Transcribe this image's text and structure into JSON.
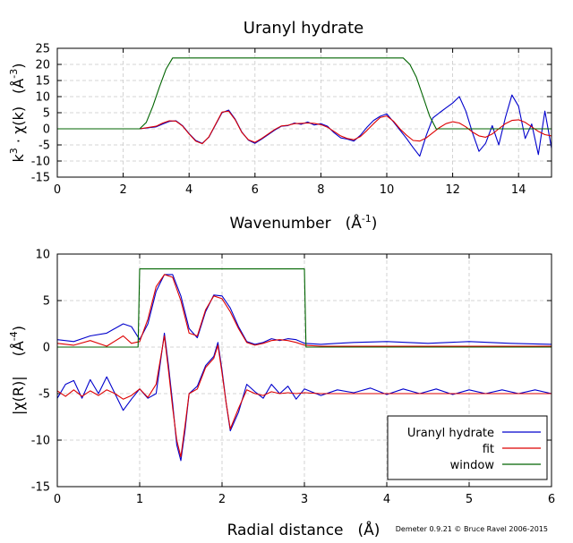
{
  "credit": "Demeter 0.9.21 © Bruce Ravel 2006-2015",
  "colors": {
    "data": "#0000cc",
    "fit": "#dd0000",
    "window": "#006400"
  },
  "chart_data": [
    {
      "type": "line",
      "title": "Uranyl hydrate",
      "xlabel": "Wavenumber",
      "xlabel_unit": "(Å",
      "xlabel_unit_exp": "-1",
      "xlabel_unit_close": ")",
      "ylabel": "k",
      "ylabel_exp": "3",
      "ylabel_rest": " · χ(k)",
      "ylabel_unit": "(Å",
      "ylabel_unit_exp": "-3",
      "ylabel_unit_close": ")",
      "xlim": [
        0,
        15
      ],
      "ylim": [
        -15,
        25
      ],
      "xticks": [
        "0",
        "2",
        "4",
        "6",
        "8",
        "10",
        "12",
        "14"
      ],
      "yticks": [
        "-15",
        "-10",
        "-5",
        "0",
        "5",
        "10",
        "15",
        "20",
        "25"
      ],
      "grid": true,
      "series": [
        {
          "key": "data",
          "x": [
            0,
            0.5,
            1,
            1.5,
            2,
            2.5,
            3,
            3.2,
            3.4,
            3.6,
            3.8,
            4,
            4.2,
            4.4,
            4.6,
            4.8,
            5,
            5.2,
            5.4,
            5.6,
            5.8,
            6,
            6.2,
            6.4,
            6.6,
            6.8,
            7,
            7.2,
            7.4,
            7.6,
            7.8,
            8,
            8.2,
            8.4,
            8.6,
            8.8,
            9,
            9.2,
            9.4,
            9.6,
            9.8,
            10,
            10.2,
            10.4,
            10.6,
            10.8,
            11,
            11.2,
            11.4,
            11.6,
            11.8,
            12,
            12.2,
            12.4,
            12.6,
            12.8,
            13,
            13.2,
            13.4,
            13.6,
            13.8,
            14,
            14.2,
            14.4,
            14.6,
            14.8,
            15
          ],
          "y": [
            0,
            0,
            0,
            0,
            0,
            0,
            0.6,
            1.5,
            2.3,
            2.5,
            1.0,
            -1.5,
            -3.6,
            -4.5,
            -2.6,
            1.2,
            5.0,
            5.8,
            3.0,
            -1.0,
            -3.5,
            -4.5,
            -3.2,
            -1.8,
            -0.4,
            0.8,
            1.0,
            1.8,
            1.4,
            2.1,
            1.2,
            1.6,
            0.8,
            -1.2,
            -2.8,
            -3.2,
            -3.8,
            -2.0,
            0.5,
            2.6,
            3.9,
            4.6,
            2.2,
            -0.4,
            -3.0,
            -5.8,
            -8.5,
            -2.0,
            3.4,
            5.0,
            6.5,
            8.0,
            10.0,
            5.5,
            -1.2,
            -7.0,
            -4.5,
            1.0,
            -5.0,
            3.5,
            10.5,
            7.0,
            -3.0,
            1.5,
            -8.0,
            5.5,
            -6.0
          ]
        },
        {
          "key": "fit",
          "x": [
            0,
            0.5,
            1,
            1.5,
            2,
            2.5,
            3,
            3.2,
            3.4,
            3.6,
            3.8,
            4,
            4.2,
            4.4,
            4.6,
            4.8,
            5,
            5.2,
            5.4,
            5.6,
            5.8,
            6,
            6.2,
            6.4,
            6.6,
            6.8,
            7,
            7.2,
            7.4,
            7.6,
            7.8,
            8,
            8.2,
            8.4,
            8.6,
            8.8,
            9,
            9.2,
            9.4,
            9.6,
            9.8,
            10,
            10.2,
            10.4,
            10.6,
            10.8,
            11,
            11.2,
            11.4,
            11.6,
            11.8,
            12,
            12.2,
            12.4,
            12.6,
            12.8,
            13,
            13.2,
            13.4,
            13.6,
            13.8,
            14,
            14.2,
            14.4,
            14.6,
            14.8,
            15
          ],
          "y": [
            0,
            0,
            0,
            0,
            0,
            0,
            0.8,
            1.8,
            2.5,
            2.4,
            0.9,
            -1.6,
            -3.8,
            -4.6,
            -2.5,
            1.3,
            5.2,
            5.5,
            2.8,
            -1.1,
            -3.4,
            -4.2,
            -3.0,
            -1.6,
            -0.2,
            0.9,
            1.1,
            1.6,
            1.7,
            1.8,
            1.7,
            1.3,
            0.5,
            -0.8,
            -2.2,
            -3.0,
            -3.4,
            -2.4,
            -0.5,
            1.6,
            3.5,
            4.0,
            2.4,
            0.0,
            -2.0,
            -3.6,
            -3.8,
            -2.8,
            -1.2,
            0.4,
            1.6,
            2.2,
            1.8,
            0.6,
            -1.0,
            -2.2,
            -2.6,
            -1.6,
            0.0,
            1.6,
            2.6,
            2.8,
            2.0,
            0.6,
            -0.8,
            -1.8,
            -2.2
          ]
        },
        {
          "key": "window",
          "x": [
            0,
            2.5,
            2.7,
            2.9,
            3.1,
            3.3,
            3.5,
            10.5,
            10.7,
            10.9,
            11.1,
            11.3,
            11.5,
            15
          ],
          "y": [
            0,
            0,
            2,
            7,
            13,
            18.5,
            22,
            22,
            20,
            16,
            10,
            4,
            0,
            0
          ]
        }
      ]
    },
    {
      "type": "line",
      "xlabel": "Radial distance",
      "xlabel_unit": "(Å)",
      "ylabel": "|χ(R)|",
      "ylabel_unit": "(Å",
      "ylabel_unit_exp": "-4",
      "ylabel_unit_close": ")",
      "xlim": [
        0,
        6
      ],
      "ylim": [
        -15,
        10
      ],
      "xticks": [
        "0",
        "1",
        "2",
        "3",
        "4",
        "5",
        "6"
      ],
      "yticks": [
        "-15",
        "-10",
        "-5",
        "0",
        "5",
        "10"
      ],
      "grid": true,
      "legend_placement": "bottom-right",
      "series": [
        {
          "key": "data",
          "name": "Uranyl hydrate",
          "x": [
            0,
            0.2,
            0.4,
            0.6,
            0.8,
            0.9,
            1.0,
            1.1,
            1.2,
            1.3,
            1.4,
            1.5,
            1.6,
            1.7,
            1.8,
            1.9,
            2.0,
            2.1,
            2.2,
            2.3,
            2.4,
            2.5,
            2.6,
            2.7,
            2.8,
            2.9,
            3.0,
            3.2,
            3.4,
            3.6,
            4.0,
            4.5,
            5.0,
            5.5,
            6.0
          ],
          "y": [
            0.8,
            0.6,
            1.2,
            1.5,
            2.5,
            2.2,
            0.8,
            2.5,
            6.0,
            7.8,
            7.8,
            5.5,
            2.0,
            1.0,
            3.8,
            5.6,
            5.5,
            4.2,
            2.2,
            0.6,
            0.3,
            0.5,
            0.9,
            0.7,
            0.9,
            0.8,
            0.4,
            0.3,
            0.4,
            0.5,
            0.6,
            0.4,
            0.6,
            0.4,
            0.3
          ]
        },
        {
          "key": "fit",
          "name": "fit",
          "x": [
            0,
            0.2,
            0.4,
            0.6,
            0.8,
            0.9,
            1.0,
            1.1,
            1.2,
            1.3,
            1.4,
            1.5,
            1.6,
            1.7,
            1.8,
            1.9,
            2.0,
            2.1,
            2.2,
            2.3,
            2.4,
            2.5,
            2.6,
            2.7,
            2.8,
            2.9,
            3.0,
            3.2,
            3.4,
            3.6,
            4.0,
            4.5,
            5.0,
            5.5,
            6.0
          ],
          "y": [
            0.4,
            0.2,
            0.7,
            0.1,
            1.2,
            0.4,
            0.6,
            3.0,
            6.5,
            7.8,
            7.5,
            5.0,
            1.5,
            1.2,
            4.0,
            5.5,
            5.2,
            3.8,
            2.0,
            0.5,
            0.2,
            0.4,
            0.7,
            0.8,
            0.7,
            0.5,
            0.2,
            0.1,
            0.1,
            0.1,
            0.1,
            0.1,
            0.1,
            0.1,
            0.1
          ]
        },
        {
          "key": "window",
          "name": "window",
          "x": [
            0,
            0.98,
            1.0,
            3.0,
            3.02,
            6.0
          ],
          "y": [
            0,
            0,
            8.4,
            8.4,
            0,
            0
          ]
        },
        {
          "key": "data_re",
          "x": [
            0,
            0.1,
            0.2,
            0.3,
            0.4,
            0.5,
            0.6,
            0.7,
            0.8,
            0.9,
            1.0,
            1.1,
            1.2,
            1.3,
            1.35,
            1.4,
            1.45,
            1.5,
            1.55,
            1.6,
            1.7,
            1.8,
            1.9,
            1.95,
            2.0,
            2.05,
            2.1,
            2.2,
            2.3,
            2.4,
            2.5,
            2.6,
            2.7,
            2.8,
            2.9,
            3.0,
            3.2,
            3.4,
            3.6,
            3.8,
            4.0,
            4.2,
            4.4,
            4.6,
            4.8,
            5.0,
            5.2,
            5.4,
            5.6,
            5.8,
            6.0
          ],
          "y": [
            -5.5,
            -4.0,
            -3.6,
            -5.5,
            -3.5,
            -5.0,
            -3.2,
            -5.0,
            -6.8,
            -5.6,
            -4.5,
            -5.5,
            -5.0,
            1.5,
            -2.0,
            -6.0,
            -10.5,
            -12.2,
            -9.0,
            -5.0,
            -4.2,
            -2.0,
            -1.0,
            0.5,
            -2.5,
            -6.0,
            -9.0,
            -7.0,
            -4.0,
            -4.8,
            -5.5,
            -4.0,
            -5.0,
            -4.2,
            -5.6,
            -4.5,
            -5.2,
            -4.6,
            -4.9,
            -4.4,
            -5.1,
            -4.5,
            -5.0,
            -4.5,
            -5.1,
            -4.6,
            -5.0,
            -4.6,
            -5.0,
            -4.6,
            -5.0
          ]
        },
        {
          "key": "fit_re",
          "x": [
            0,
            0.1,
            0.2,
            0.3,
            0.4,
            0.5,
            0.6,
            0.7,
            0.8,
            0.9,
            1.0,
            1.1,
            1.2,
            1.3,
            1.35,
            1.4,
            1.45,
            1.5,
            1.55,
            1.6,
            1.7,
            1.8,
            1.9,
            1.95,
            2.0,
            2.05,
            2.1,
            2.2,
            2.3,
            2.4,
            2.5,
            2.6,
            2.7,
            2.8,
            2.9,
            3.0,
            3.2,
            3.4,
            3.6,
            3.8,
            4.0,
            4.2,
            4.4,
            4.6,
            4.8,
            5.0,
            5.2,
            5.4,
            5.6,
            5.8,
            6.0
          ],
          "y": [
            -4.7,
            -5.3,
            -4.6,
            -5.3,
            -4.7,
            -5.2,
            -4.6,
            -5.0,
            -5.6,
            -5.2,
            -4.5,
            -5.4,
            -4.0,
            1.2,
            -2.5,
            -6.5,
            -10.0,
            -11.8,
            -8.5,
            -5.0,
            -4.5,
            -2.2,
            -1.2,
            0.2,
            -2.8,
            -6.0,
            -8.8,
            -6.6,
            -4.6,
            -5.0,
            -5.2,
            -4.8,
            -5.0,
            -4.9,
            -5.0,
            -4.9,
            -5.0,
            -5.0,
            -5.0,
            -5.0,
            -5.0,
            -5.0,
            -5.0,
            -5.0,
            -5.0,
            -5.0,
            -5.0,
            -5.0,
            -5.0,
            -5.0,
            -5.0
          ]
        }
      ]
    }
  ]
}
